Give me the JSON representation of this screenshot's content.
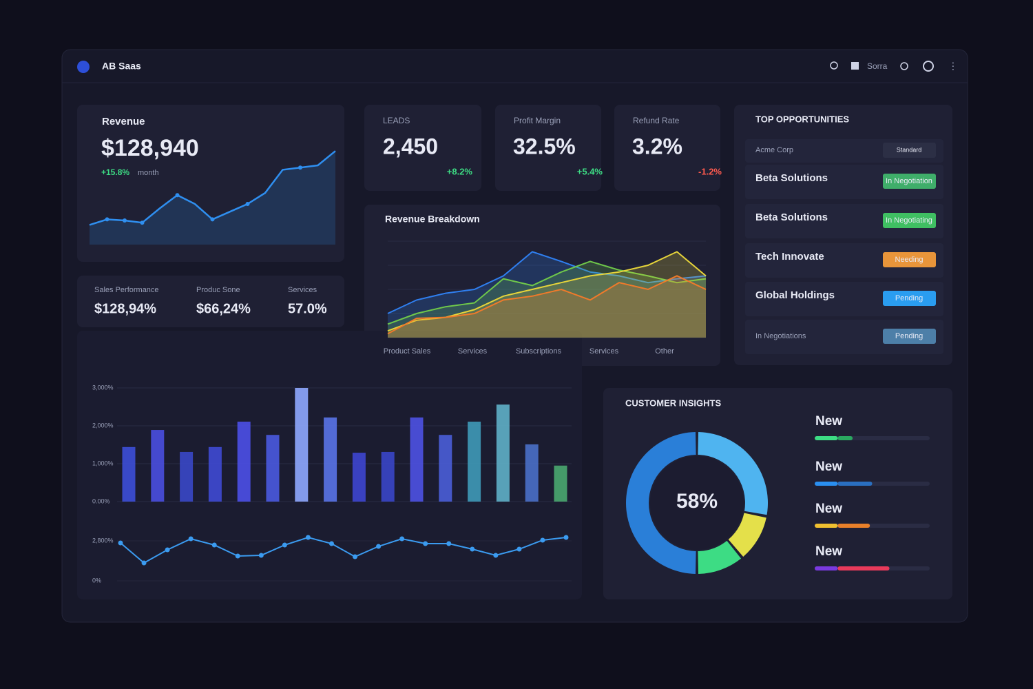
{
  "header": {
    "brand": "AB Saas",
    "user": "Sorra"
  },
  "revenue": {
    "title": "Revenue",
    "value": "$128,940",
    "change": "+15.8%",
    "change_note": "month",
    "chart": {
      "type": "line",
      "color": "#2f8ff0",
      "ylim": [
        0,
        100
      ],
      "values": [
        21,
        26,
        25,
        23,
        36,
        48,
        40,
        26,
        33,
        40,
        50,
        71,
        73,
        75,
        88
      ]
    }
  },
  "kpis": [
    {
      "title": "LEADS",
      "value": "2,450",
      "change": "+8.2%",
      "change_color": "#3ddc84"
    },
    {
      "title": "Profit Margin",
      "value": "32.5%",
      "change": "+5.4%",
      "change_color": "#3ddc84"
    },
    {
      "title": "Refund Rate",
      "value": "3.2%",
      "change": "-1.2%",
      "change_color": "#ff5a4e"
    }
  ],
  "sales_performance": [
    {
      "label": "Sales Performance",
      "value": "$128,94%"
    },
    {
      "label": "Produc Sone",
      "value": "$66,24%"
    },
    {
      "label": "Services",
      "value": "57.0%"
    }
  ],
  "revenue_breakdown": {
    "title": "Revenue Breakdown",
    "chart": {
      "type": "area",
      "ylim": [
        0,
        100
      ],
      "x_labels": [
        "Product Sales",
        "Services",
        "Subscriptions",
        "Services",
        "Other"
      ],
      "series": [
        {
          "color": "#2f7ff0",
          "values": [
            25,
            39,
            46,
            50,
            64,
            89,
            79,
            68,
            64,
            57,
            61,
            64
          ]
        },
        {
          "color": "#6fc84a",
          "values": [
            14,
            25,
            32,
            36,
            61,
            54,
            68,
            79,
            70,
            64,
            57,
            61
          ]
        },
        {
          "color": "#e6d43a",
          "values": [
            7,
            18,
            21,
            29,
            43,
            50,
            57,
            64,
            68,
            75,
            89,
            64
          ]
        },
        {
          "color": "#f07a2a",
          "values": [
            4,
            20,
            21,
            25,
            39,
            43,
            50,
            39,
            57,
            50,
            64,
            50
          ]
        }
      ]
    }
  },
  "top_opportunities": {
    "title": "TOP OPPORTUNITIES",
    "rows": [
      {
        "name": "Acme Corp",
        "status": "Standard",
        "color": "#2c2f45"
      },
      {
        "name": "Beta Solutions",
        "status": "In Negotiation",
        "color": "#3fae6a"
      },
      {
        "name": "Beta Solutions",
        "status": "In Negotiating",
        "color": "#3fbf62"
      },
      {
        "name": "Tech Innovate",
        "status": "Needing",
        "color": "#e8953a"
      },
      {
        "name": "Global Holdings",
        "status": "Pending",
        "color": "#2a9df0"
      },
      {
        "name": "In Negotiations",
        "status": "Pending",
        "color": "#4d7fa8"
      }
    ]
  },
  "bar_chart": {
    "type": "bar",
    "ylim": [
      0,
      3200
    ],
    "yticks": [
      {
        "value": 0,
        "label": "0.00%"
      },
      {
        "value": 1000,
        "label": "1,000%"
      },
      {
        "value": 2000,
        "label": "2,000%"
      },
      {
        "value": 3000,
        "label": "3,000%"
      }
    ],
    "values": [
      1440,
      1890,
      1310,
      1440,
      2110,
      1760,
      3000,
      2220,
      1290,
      1310,
      2220,
      1760,
      2110,
      2560,
      1510,
      950
    ],
    "colors": [
      "#3d4fd8",
      "#4a4fe0",
      "#3a48c8",
      "#3f4ad4",
      "#4c50e8",
      "#4a5ae0",
      "#8fa8ff",
      "#5a74e8",
      "#3e46d0",
      "#3a46c8",
      "#4e52e4",
      "#4a5ed8",
      "#3f9ab8",
      "#5fb0c8",
      "#4a70c8",
      "#4aa870"
    ]
  },
  "trend_chart": {
    "type": "line",
    "color": "#3b9bf0",
    "ylim": [
      0,
      3200
    ],
    "yticks": [
      {
        "value": 0,
        "label": "0%"
      },
      {
        "value": 2800,
        "label": "2,800%"
      }
    ],
    "values": [
      2655,
      1255,
      2172,
      2945,
      2510,
      1738,
      1786,
      2510,
      3041,
      2607,
      1690,
      2414,
      2945,
      2607,
      2607,
      2221,
      1786,
      2221,
      2848,
      3041
    ]
  },
  "customer_insights": {
    "title": "CUSTOMER INSIGHTS",
    "center_label": "58%",
    "donut": {
      "type": "pie",
      "values": [
        28,
        11,
        11,
        50
      ],
      "colors": [
        "#4fb4f0",
        "#e4e04a",
        "#3ddc84",
        "#2a7fd8"
      ]
    },
    "items": [
      {
        "label": "New",
        "values": [
          20,
          13
        ],
        "colors": [
          "#3ddc84",
          "#2aa860"
        ]
      },
      {
        "label": "New",
        "values": [
          20,
          30
        ],
        "colors": [
          "#2a8ff0",
          "#2a6fc0"
        ]
      },
      {
        "label": "New",
        "values": [
          20,
          28
        ],
        "colors": [
          "#f0c030",
          "#e8802a"
        ]
      },
      {
        "label": "New",
        "values": [
          20,
          45
        ],
        "colors": [
          "#7a3ae0",
          "#e83a5a"
        ]
      }
    ]
  }
}
